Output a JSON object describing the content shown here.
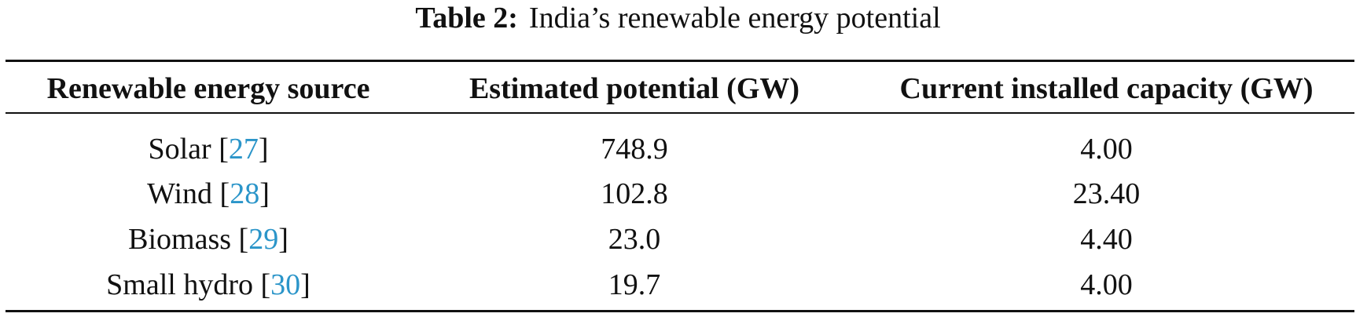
{
  "caption": {
    "label": "Table 2:",
    "text": "India’s renewable energy potential"
  },
  "table": {
    "headers": [
      "Renewable energy source",
      "Estimated potential (GW)",
      "Current installed capacity (GW)"
    ],
    "rows": [
      {
        "source": "Solar",
        "ref": "27",
        "potential": "748.9",
        "installed": "4.00"
      },
      {
        "source": "Wind",
        "ref": "28",
        "potential": "102.8",
        "installed": "23.40"
      },
      {
        "source": "Biomass",
        "ref": "29",
        "potential": "23.0",
        "installed": "4.40"
      },
      {
        "source": "Small hydro",
        "ref": "30",
        "potential": "19.7",
        "installed": "4.00"
      }
    ]
  },
  "colors": {
    "text": "#111111",
    "citation_link": "#2b95c9"
  }
}
